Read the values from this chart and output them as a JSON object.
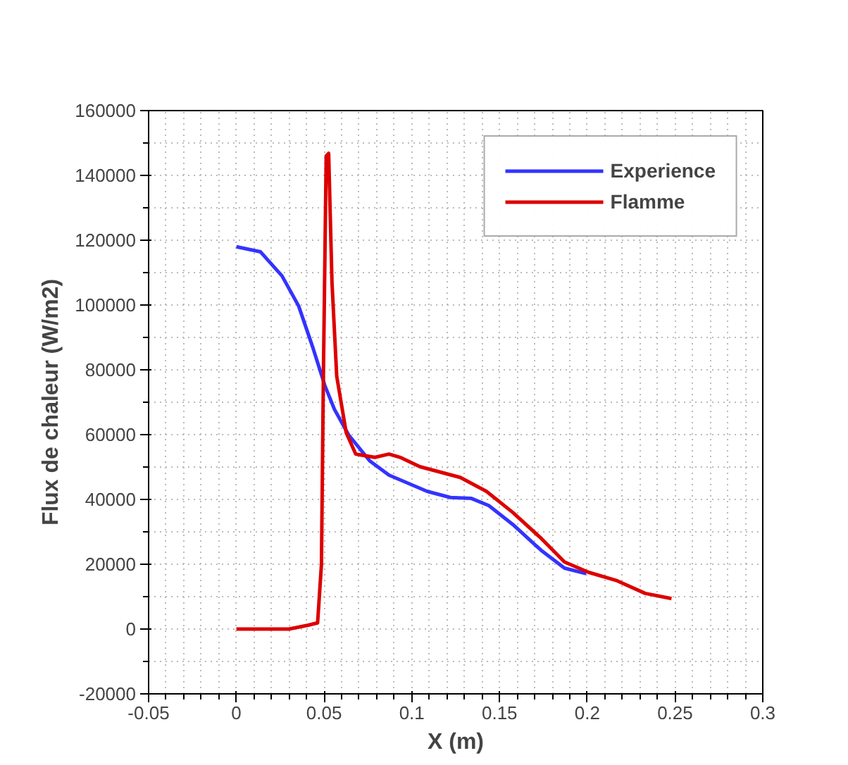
{
  "chart_data": {
    "type": "line",
    "xlabel": "X (m)",
    "ylabel": "Flux de chaleur (W/m2)",
    "xlim": [
      -0.05,
      0.3
    ],
    "xticks": [
      -0.05,
      0,
      0.05,
      0.1,
      0.15,
      0.2,
      0.25,
      0.3
    ],
    "ylim": [
      -20000,
      160000
    ],
    "yticks": [
      -20000,
      0,
      20000,
      40000,
      60000,
      80000,
      100000,
      120000,
      140000,
      160000
    ],
    "grid": true,
    "legend": "top right",
    "line_style": "solid",
    "marker": "none",
    "series": [
      {
        "name": "Experience",
        "color": "#3333ff",
        "x": [
          0,
          0.0138,
          0.026,
          0.0355,
          0.0437,
          0.0504,
          0.0559,
          0.064,
          0.076,
          0.087,
          0.1087,
          0.122,
          0.134,
          0.1439,
          0.1575,
          0.1737,
          0.187,
          0.1994
        ],
        "values": [
          118000,
          116400,
          109000,
          99700,
          86700,
          75200,
          67800,
          59900,
          51900,
          47500,
          42500,
          40600,
          40300,
          38100,
          32300,
          24300,
          18800,
          17100
        ]
      },
      {
        "name": "Flamme",
        "color": "#dd0000",
        "x": [
          0,
          0.03,
          0.041,
          0.0463,
          0.0485,
          0.0496,
          0.0512,
          0.0526,
          0.0545,
          0.0572,
          0.0626,
          0.068,
          0.0789,
          0.087,
          0.0938,
          0.1046,
          0.1276,
          0.1425,
          0.1575,
          0.1737,
          0.187,
          0.2008,
          0.217,
          0.233,
          0.248
        ],
        "values": [
          0,
          0,
          1200,
          1900,
          20000,
          78000,
          146000,
          146800,
          107000,
          78000,
          60600,
          54000,
          53000,
          54000,
          52900,
          50100,
          46800,
          42500,
          36000,
          28000,
          20700,
          17500,
          14900,
          11000,
          9400
        ]
      }
    ]
  }
}
